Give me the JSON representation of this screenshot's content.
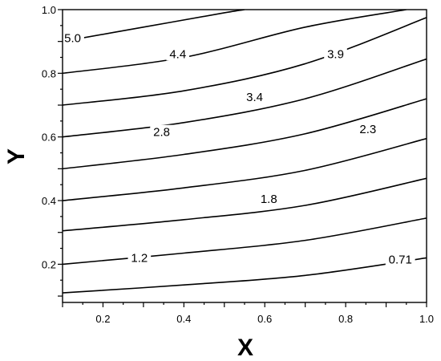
{
  "chart_data": {
    "type": "contour",
    "xlabel": "X",
    "ylabel": "Y",
    "xlim": [
      0.1,
      1.0
    ],
    "ylim": [
      0.08,
      1.0
    ],
    "x_ticks": [
      0.2,
      0.4,
      0.6,
      0.8,
      1.0
    ],
    "x_tick_labels": [
      "0.2",
      "0.4",
      "0.6",
      "0.8",
      "1.0"
    ],
    "y_ticks": [
      0.2,
      0.4,
      0.6,
      0.8,
      1.0
    ],
    "y_tick_labels": [
      "0.2",
      "0.4",
      "0.6",
      "0.8",
      "1.0"
    ],
    "grid": false,
    "contour_lines": [
      {
        "x": [
          0.1,
          0.4,
          0.7,
          1.0
        ],
        "y": [
          0.11,
          0.135,
          0.165,
          0.22
        ]
      },
      {
        "x": [
          0.1,
          0.4,
          0.7,
          1.0
        ],
        "y": [
          0.2,
          0.235,
          0.275,
          0.345
        ]
      },
      {
        "x": [
          0.1,
          0.4,
          0.7,
          1.0
        ],
        "y": [
          0.305,
          0.34,
          0.385,
          0.47
        ]
      },
      {
        "x": [
          0.1,
          0.4,
          0.7,
          1.0
        ],
        "y": [
          0.4,
          0.44,
          0.495,
          0.595
        ]
      },
      {
        "x": [
          0.1,
          0.4,
          0.7,
          1.0
        ],
        "y": [
          0.5,
          0.545,
          0.61,
          0.72
        ]
      },
      {
        "x": [
          0.1,
          0.4,
          0.7,
          1.0
        ],
        "y": [
          0.6,
          0.645,
          0.72,
          0.845
        ]
      },
      {
        "x": [
          0.1,
          0.4,
          0.7,
          1.0
        ],
        "y": [
          0.7,
          0.745,
          0.83,
          0.975
        ]
      },
      {
        "x": [
          0.1,
          0.4,
          0.7,
          0.95
        ],
        "y": [
          0.8,
          0.85,
          0.945,
          1.0
        ]
      },
      {
        "x": [
          0.1,
          0.3,
          0.5,
          0.55
        ],
        "y": [
          0.9,
          0.945,
          0.99,
          1.0
        ]
      }
    ],
    "contour_labels": [
      {
        "text": "5.0",
        "x": 0.125,
        "y": 0.91
      },
      {
        "text": "4.4",
        "x": 0.385,
        "y": 0.86
      },
      {
        "text": "3.9",
        "x": 0.775,
        "y": 0.86
      },
      {
        "text": "3.4",
        "x": 0.575,
        "y": 0.725
      },
      {
        "text": "2.8",
        "x": 0.345,
        "y": 0.615
      },
      {
        "text": "2.3",
        "x": 0.855,
        "y": 0.625
      },
      {
        "text": "1.8",
        "x": 0.61,
        "y": 0.405
      },
      {
        "text": "1.2",
        "x": 0.29,
        "y": 0.22
      },
      {
        "text": "0.71",
        "x": 0.935,
        "y": 0.215
      }
    ]
  }
}
